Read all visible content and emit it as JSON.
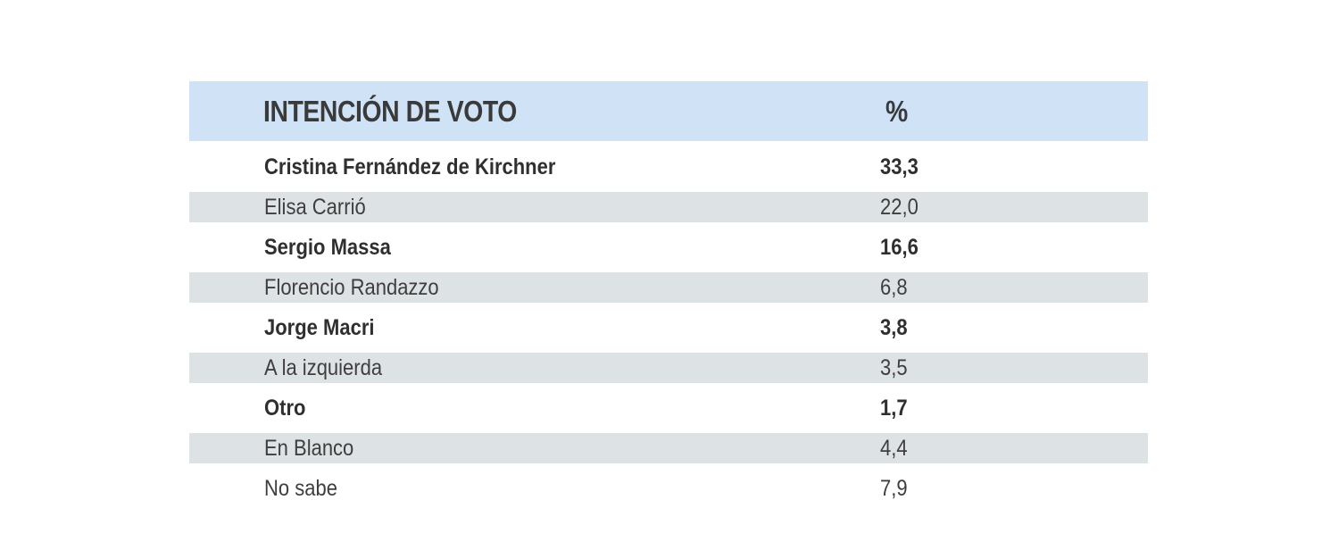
{
  "chart_data": {
    "type": "table",
    "columns": [
      "INTENCIÓN DE VOTO",
      "%"
    ],
    "rows": [
      {
        "label": "Cristina Fernández de Kirchner",
        "value": "33,3",
        "bold": true
      },
      {
        "label": "Elisa Carrió",
        "value": "22,0",
        "bold": false
      },
      {
        "label": "Sergio Massa",
        "value": "16,6",
        "bold": true
      },
      {
        "label": "Florencio Randazzo",
        "value": "6,8",
        "bold": false
      },
      {
        "label": "Jorge Macri",
        "value": "3,8",
        "bold": true
      },
      {
        "label": "A la izquierda",
        "value": "3,5",
        "bold": false
      },
      {
        "label": "Otro",
        "value": "1,7",
        "bold": true
      },
      {
        "label": "En Blanco",
        "value": "4,4",
        "bold": false
      },
      {
        "label": "No sabe",
        "value": "7,9",
        "bold": false
      }
    ]
  },
  "colors": {
    "header_bg": "#cfe2f6",
    "stripe_bg": "#dde2e5",
    "text": "#3e3e3e"
  }
}
